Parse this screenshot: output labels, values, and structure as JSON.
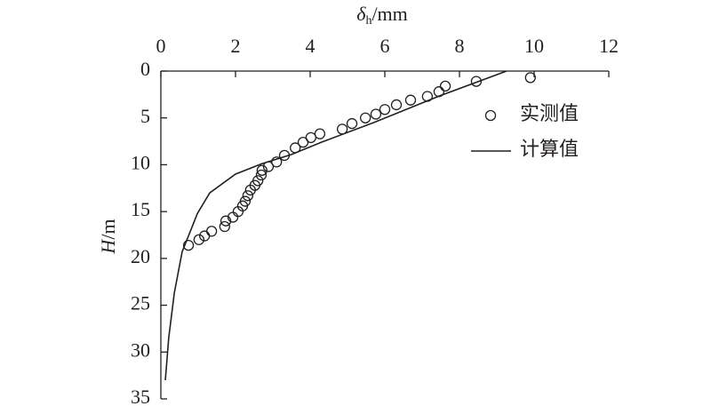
{
  "chart_data": {
    "type": "scatter",
    "xlabel": [
      "δ",
      "h",
      "/mm"
    ],
    "ylabel": [
      "H",
      "/m"
    ],
    "xlim": [
      0,
      12
    ],
    "xticks": [
      0,
      2,
      4,
      6,
      8,
      10,
      12
    ],
    "ylim": [
      0,
      35
    ],
    "yticks": [
      0,
      5,
      10,
      15,
      20,
      25,
      30,
      35
    ],
    "y_inverted": true,
    "x_axis_position": "top",
    "legend": "upper right",
    "series": [
      {
        "name": "实测值",
        "type": "scatter",
        "color": "#231f20",
        "x": [
          9.9,
          8.45,
          7.62,
          7.45,
          7.14,
          6.69,
          6.31,
          6.0,
          5.76,
          5.48,
          5.12,
          4.86,
          4.26,
          4.02,
          3.81,
          3.6,
          3.31,
          3.1,
          2.88,
          2.71,
          2.69,
          2.6,
          2.52,
          2.4,
          2.33,
          2.26,
          2.19,
          2.07,
          1.93,
          1.74,
          1.71,
          1.36,
          1.17,
          1.02,
          0.74
        ],
        "y": [
          0.7,
          1.1,
          1.6,
          2.2,
          2.7,
          3.1,
          3.6,
          4.1,
          4.6,
          5.0,
          5.6,
          6.2,
          6.7,
          7.1,
          7.6,
          8.2,
          9.0,
          9.7,
          10.2,
          10.6,
          11.1,
          11.7,
          12.2,
          12.7,
          13.3,
          13.9,
          14.4,
          15.0,
          15.6,
          16.0,
          16.6,
          17.1,
          17.6,
          18.0,
          18.6
        ]
      },
      {
        "name": "计算值",
        "type": "line",
        "color": "#231f20",
        "x": [
          9.26,
          7.5,
          5.7,
          4.3,
          3.5,
          2.7,
          2.0,
          1.31,
          0.98,
          0.57,
          0.36,
          0.21,
          0.12
        ],
        "y": [
          0,
          2.6,
          5.5,
          7.6,
          8.9,
          9.9,
          11.0,
          13.0,
          15.2,
          19.3,
          23.7,
          28.5,
          33.0
        ]
      }
    ]
  }
}
